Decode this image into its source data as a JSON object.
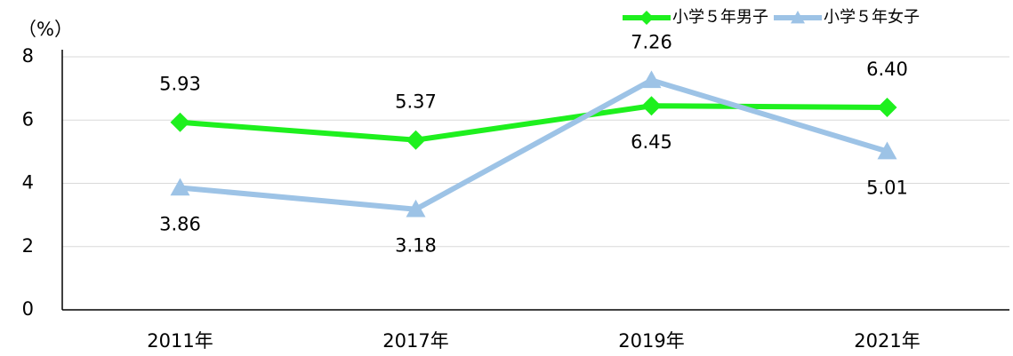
{
  "chart_data": {
    "type": "line",
    "y_axis_label": "（%）",
    "categories": [
      "2011年",
      "2017年",
      "2019年",
      "2021年"
    ],
    "series": [
      {
        "name": "小学５年男子",
        "color": "#1ef01e",
        "marker": "diamond",
        "values": [
          5.93,
          5.37,
          6.45,
          6.4
        ],
        "value_labels": [
          "5.93",
          "5.37",
          "6.45",
          "6.40"
        ]
      },
      {
        "name": "小学５年女子",
        "color": "#9dc3e6",
        "marker": "triangle",
        "values": [
          3.86,
          3.18,
          7.26,
          5.01
        ],
        "value_labels": [
          "3.86",
          "3.18",
          "7.26",
          "5.01"
        ]
      }
    ],
    "ylim": [
      0,
      8
    ],
    "yticks": [
      0,
      2,
      4,
      6,
      8
    ],
    "grid": true,
    "legend": "top-right"
  }
}
